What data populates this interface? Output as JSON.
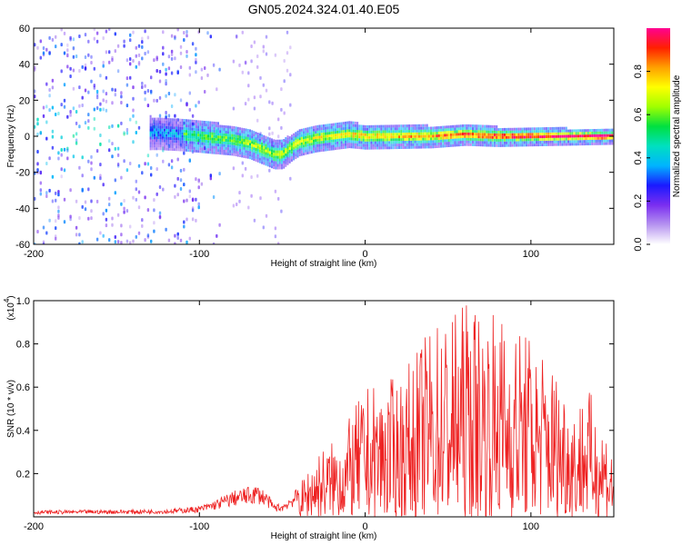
{
  "title": "GN05.2024.324.01.40.E05",
  "chart_data": [
    {
      "type": "heatmap",
      "panel": "top",
      "xlabel": "Height of straight line (km)",
      "ylabel": "Frequency (Hz)",
      "xlim": [
        -200,
        150
      ],
      "ylim": [
        -60,
        60
      ],
      "x_ticks": [
        "-200",
        "-100",
        "0",
        "100"
      ],
      "y_ticks": [
        "-60",
        "-40",
        "-20",
        "0",
        "20",
        "40",
        "60"
      ],
      "colorbar": {
        "label": "Normalized spectral amplitude",
        "range": [
          0,
          1
        ],
        "ticks": [
          "0.0",
          "0.2",
          "0.4",
          "0.6",
          "0.8"
        ],
        "colors": [
          "#ffffff",
          "#b693f0",
          "#7a2ef0",
          "#1a1aff",
          "#00b4ff",
          "#00e0c0",
          "#00e040",
          "#a0ff00",
          "#ffff00",
          "#ffa000",
          "#ff2000",
          "#ff0090"
        ]
      },
      "ridge": {
        "x": [
          -125,
          -110,
          -100,
          -90,
          -80,
          -70,
          -60,
          -55,
          -50,
          -45,
          -40,
          -30,
          -20,
          -10,
          0,
          20,
          40,
          60,
          80,
          100,
          120,
          150
        ],
        "y": [
          2,
          1,
          0,
          -1,
          -2,
          -4,
          -8,
          -10,
          -10,
          -6,
          -3,
          -1,
          0,
          1,
          0,
          0,
          0,
          1,
          0,
          0,
          0,
          0
        ]
      },
      "noise_region_x": [
        -200,
        -100
      ]
    },
    {
      "type": "line",
      "panel": "bottom",
      "xlabel": "Height of straight line (km)",
      "ylabel": "SNR (10 * v/v)",
      "scale_note": "(x10",
      "scale_exp": "4",
      "scale_close": ")",
      "xlim": [
        -200,
        150
      ],
      "ylim": [
        0,
        1.0
      ],
      "x_ticks": [
        "-200",
        "-100",
        "0",
        "100"
      ],
      "y_ticks": [
        "0.2",
        "0.4",
        "0.6",
        "0.8",
        "1.0"
      ],
      "color": "#ee2222",
      "envelope": {
        "x": [
          -200,
          -120,
          -100,
          -90,
          -80,
          -70,
          -65,
          -60,
          -55,
          -50,
          -45,
          -40,
          -35,
          -30,
          -20,
          -10,
          0,
          10,
          20,
          30,
          40,
          50,
          60,
          70,
          80,
          90,
          100,
          110,
          120,
          128,
          132,
          140,
          145,
          150
        ],
        "y": [
          0.03,
          0.035,
          0.05,
          0.08,
          0.12,
          0.14,
          0.15,
          0.12,
          0.06,
          0.06,
          0.1,
          0.14,
          0.22,
          0.3,
          0.35,
          0.45,
          0.6,
          0.62,
          0.65,
          0.75,
          0.9,
          0.95,
          1.0,
          0.98,
          0.95,
          0.9,
          0.85,
          0.75,
          0.65,
          0.5,
          0.65,
          0.5,
          0.45,
          0.3
        ]
      }
    }
  ]
}
